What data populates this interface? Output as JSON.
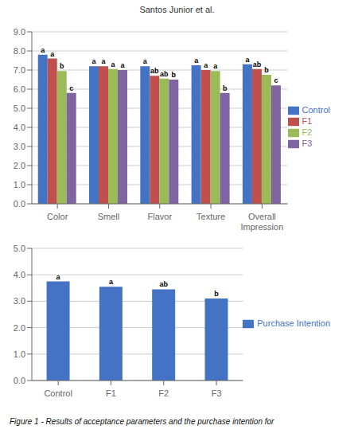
{
  "chart_data": [
    {
      "type": "bar",
      "annotations": [
        "Santos Junior et al."
      ],
      "categories": [
        "Color",
        "Smell",
        "Flavor",
        "Texture",
        "Overall\nImpression"
      ],
      "series": [
        {
          "name": "Control",
          "color": "#4472C4",
          "values": [
            7.8,
            7.2,
            7.2,
            7.25,
            7.3
          ],
          "significance": [
            "a",
            "a",
            "a",
            "a",
            "a"
          ]
        },
        {
          "name": "F1",
          "color": "#C0504D",
          "values": [
            7.6,
            7.2,
            6.7,
            7.0,
            7.05
          ],
          "significance": [
            "a",
            "a",
            "ab",
            "a",
            "ab"
          ]
        },
        {
          "name": "F2",
          "color": "#9BBB59",
          "values": [
            6.95,
            7.05,
            6.55,
            6.95,
            6.75
          ],
          "significance": [
            "b",
            "a",
            "ab",
            "a",
            "b"
          ]
        },
        {
          "name": "F3",
          "color": "#8064A2",
          "values": [
            5.8,
            7.0,
            6.5,
            5.8,
            6.2
          ],
          "significance": [
            "c",
            "a",
            "b",
            "b",
            "c"
          ]
        }
      ],
      "ylim": [
        0,
        9
      ],
      "yticks": [
        {
          "value": 0,
          "label": "0.0"
        },
        {
          "value": 1,
          "label": "1.0"
        },
        {
          "value": 2,
          "label": "2.0"
        },
        {
          "value": 3,
          "label": "3.0"
        },
        {
          "value": 4,
          "label": "4.0"
        },
        {
          "value": 5,
          "label": "5.0"
        },
        {
          "value": 6,
          "label": "6.0"
        },
        {
          "value": 7,
          "label": "7.0"
        },
        {
          "value": 8,
          "label": "8.0"
        },
        {
          "value": 9,
          "label": "9.0"
        }
      ],
      "grid": true,
      "legend": "right"
    },
    {
      "type": "bar",
      "annotations": [
        "Figure 1 - Results of acceptance parameters and the purchase intention for"
      ],
      "categories": [
        "Control",
        "F1",
        "F2",
        "F3"
      ],
      "series": [
        {
          "name": "Purchase Intention",
          "color": "#4472C4",
          "values": [
            3.75,
            3.55,
            3.45,
            3.1
          ],
          "significance": [
            "a",
            "a",
            "ab",
            "b"
          ]
        }
      ],
      "ylim": [
        0,
        5
      ],
      "yticks": [
        {
          "value": 0,
          "label": "0.0"
        },
        {
          "value": 1,
          "label": "1.0"
        },
        {
          "value": 2,
          "label": "2.0"
        },
        {
          "value": 3,
          "label": "3.0"
        },
        {
          "value": 4,
          "label": "4.0"
        },
        {
          "value": 5,
          "label": "5.0"
        }
      ],
      "grid": true,
      "legend": "right"
    }
  ]
}
